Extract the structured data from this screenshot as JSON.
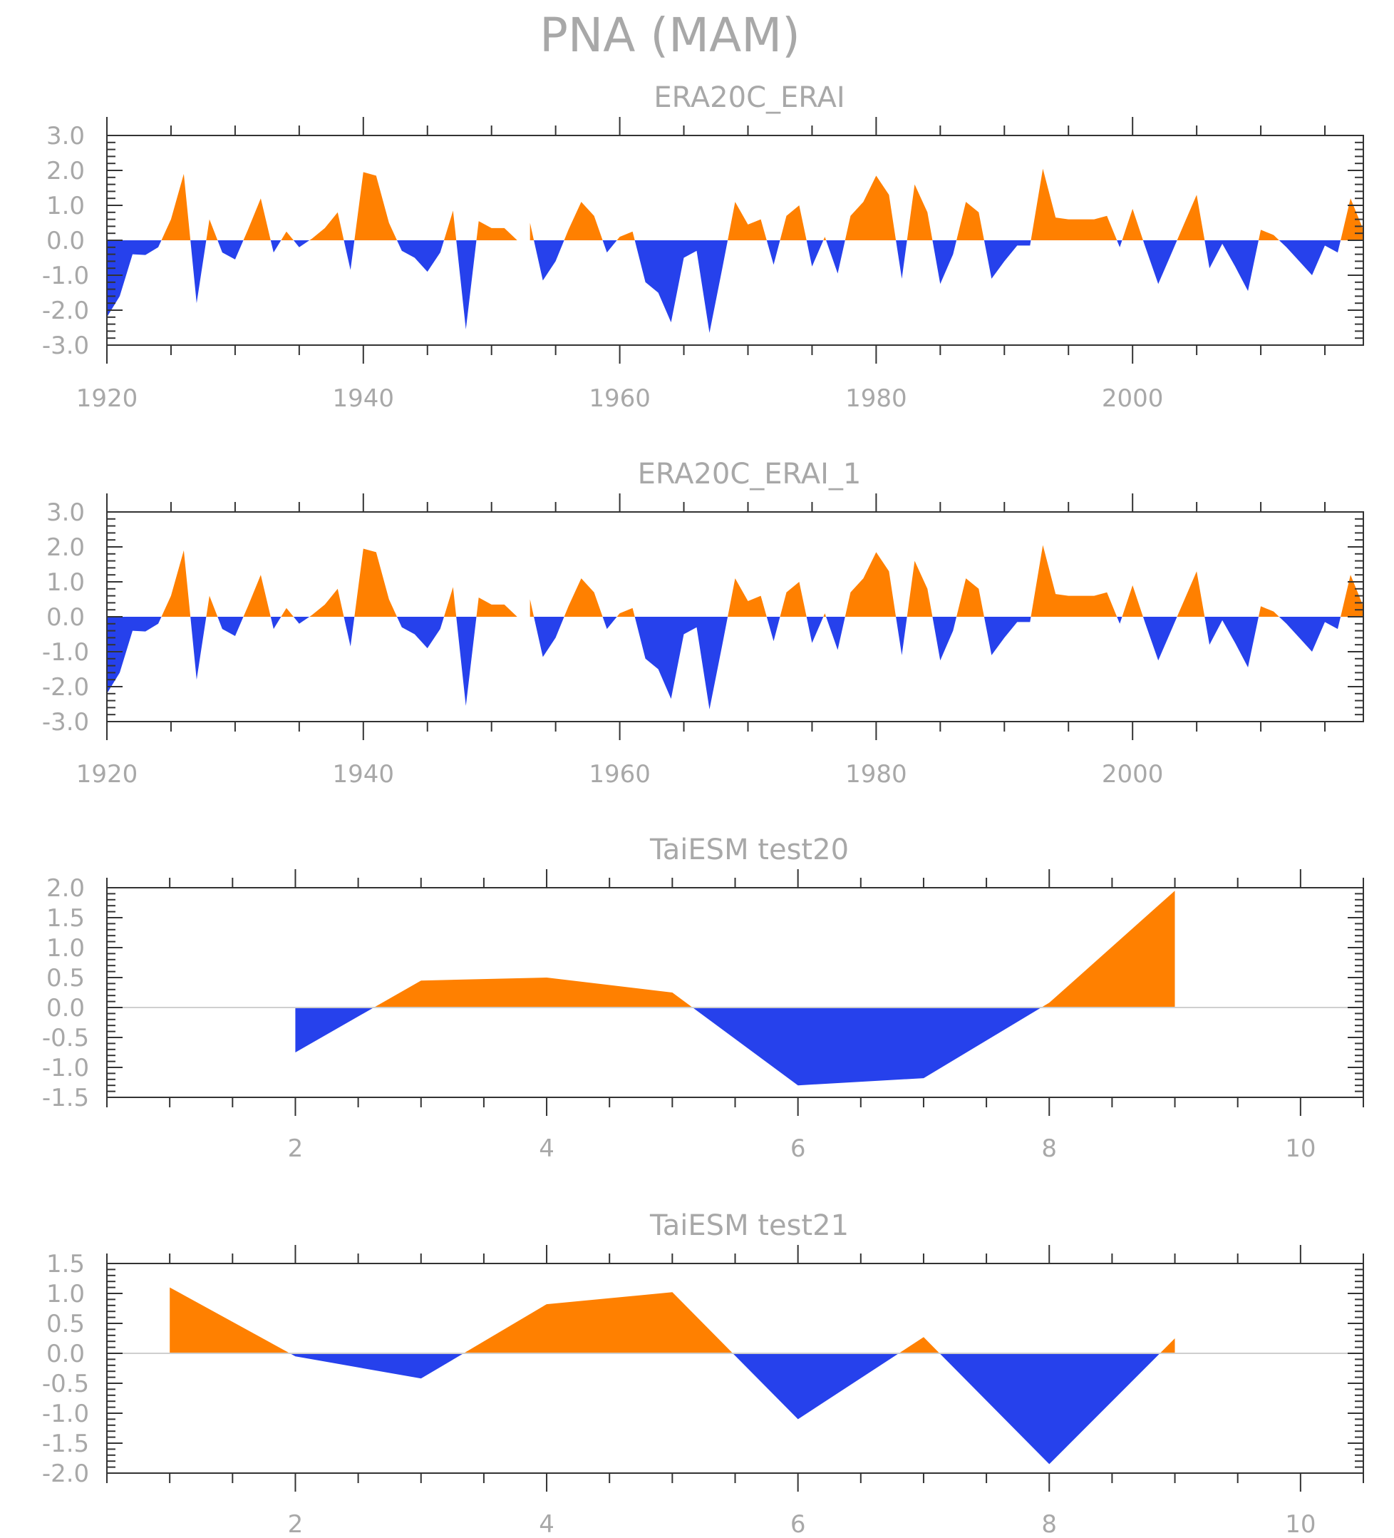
{
  "figure_title": "PNA (MAM)",
  "colors": {
    "positive": "#ff8000",
    "negative": "#2641ec",
    "text": "#a8a8a8",
    "axis": "#333333",
    "zero": "#cfcfcf"
  },
  "chart_data": [
    {
      "type": "area",
      "title": "ERA20C_ERAI",
      "xlabel": "",
      "ylabel": "",
      "xlim": [
        1920,
        2018
      ],
      "ylim": [
        -3.0,
        3.0
      ],
      "yticks": [
        "3.0",
        "2.0",
        "1.0",
        "0.0",
        "-1.0",
        "-2.0",
        "-3.0"
      ],
      "ytick_values": [
        3.0,
        2.0,
        1.0,
        0.0,
        -1.0,
        -2.0,
        -3.0
      ],
      "xticks": [
        "1920",
        "1940",
        "1960",
        "1980",
        "2000"
      ],
      "xtick_values": [
        1920,
        1940,
        1960,
        1980,
        2000
      ],
      "x_start": 1920,
      "values": [
        -2.2,
        -1.6,
        -0.4,
        -0.42,
        -0.2,
        0.6,
        1.9,
        -1.8,
        0.6,
        -0.35,
        -0.55,
        0.3,
        1.2,
        -0.35,
        0.25,
        -0.2,
        0.05,
        0.35,
        0.8,
        -0.85,
        1.95,
        1.85,
        0.5,
        -0.3,
        -0.5,
        -0.9,
        -0.35,
        0.85,
        -2.55,
        0.55,
        0.35,
        0.35,
        0.0,
        0.5,
        -1.15,
        -0.6,
        0.3,
        1.1,
        0.7,
        -0.35,
        0.1,
        0.25,
        -1.2,
        -1.5,
        -2.35,
        -0.5,
        -0.3,
        -2.65,
        -0.8,
        1.1,
        0.45,
        0.6,
        -0.7,
        0.7,
        1.0,
        -0.75,
        0.1,
        -0.95,
        0.7,
        1.1,
        1.85,
        1.3,
        -1.1,
        1.6,
        0.8,
        -1.25,
        -0.4,
        1.1,
        0.8,
        -1.1,
        -0.6,
        -0.15,
        -0.15,
        2.05,
        0.65,
        0.6,
        0.6,
        0.6,
        0.7,
        -0.2,
        0.9,
        -0.2,
        -1.25,
        -0.4,
        0.45,
        1.3,
        -0.8,
        -0.1,
        -0.75,
        -1.45,
        0.3,
        0.15,
        -0.2,
        -0.6,
        -1.0,
        -0.15,
        -0.35,
        1.2,
        0.3
      ]
    },
    {
      "type": "area",
      "title": "ERA20C_ERAI_1",
      "xlabel": "",
      "ylabel": "",
      "xlim": [
        1920,
        2018
      ],
      "ylim": [
        -3.0,
        3.0
      ],
      "yticks": [
        "3.0",
        "2.0",
        "1.0",
        "0.0",
        "-1.0",
        "-2.0",
        "-3.0"
      ],
      "ytick_values": [
        3.0,
        2.0,
        1.0,
        0.0,
        -1.0,
        -2.0,
        -3.0
      ],
      "xticks": [
        "1920",
        "1940",
        "1960",
        "1980",
        "2000"
      ],
      "xtick_values": [
        1920,
        1940,
        1960,
        1980,
        2000
      ],
      "x_start": 1920,
      "values": [
        -2.2,
        -1.6,
        -0.4,
        -0.42,
        -0.2,
        0.6,
        1.9,
        -1.8,
        0.6,
        -0.35,
        -0.55,
        0.3,
        1.2,
        -0.35,
        0.25,
        -0.2,
        0.05,
        0.35,
        0.8,
        -0.85,
        1.95,
        1.85,
        0.5,
        -0.3,
        -0.5,
        -0.9,
        -0.35,
        0.85,
        -2.55,
        0.55,
        0.35,
        0.35,
        0.0,
        0.5,
        -1.15,
        -0.6,
        0.3,
        1.1,
        0.7,
        -0.35,
        0.1,
        0.25,
        -1.2,
        -1.5,
        -2.35,
        -0.5,
        -0.3,
        -2.65,
        -0.8,
        1.1,
        0.45,
        0.6,
        -0.7,
        0.7,
        1.0,
        -0.75,
        0.1,
        -0.95,
        0.7,
        1.1,
        1.85,
        1.3,
        -1.1,
        1.6,
        0.8,
        -1.25,
        -0.4,
        1.1,
        0.8,
        -1.1,
        -0.6,
        -0.15,
        -0.15,
        2.05,
        0.65,
        0.6,
        0.6,
        0.6,
        0.7,
        -0.2,
        0.9,
        -0.2,
        -1.25,
        -0.4,
        0.45,
        1.3,
        -0.8,
        -0.1,
        -0.75,
        -1.45,
        0.3,
        0.15,
        -0.2,
        -0.6,
        -1.0,
        -0.15,
        -0.35,
        1.2,
        0.3
      ]
    },
    {
      "type": "area",
      "title": "TaiESM test20",
      "xlabel": "",
      "ylabel": "",
      "xlim": [
        0.5,
        10.5
      ],
      "ylim": [
        -1.5,
        2.0
      ],
      "yticks": [
        "2.0",
        "1.5",
        "1.0",
        "0.5",
        "0.0",
        "-0.5",
        "-1.0",
        "-1.5"
      ],
      "ytick_values": [
        2.0,
        1.5,
        1.0,
        0.5,
        0.0,
        -0.5,
        -1.0,
        -1.5
      ],
      "xticks": [
        "2",
        "4",
        "6",
        "8",
        "10"
      ],
      "xtick_values": [
        2,
        4,
        6,
        8,
        10
      ],
      "x_start": 1,
      "values": [
        0.0,
        -0.75,
        0.45,
        0.5,
        0.25,
        -1.3,
        -1.18,
        0.08,
        1.95
      ],
      "zero_line": true
    },
    {
      "type": "area",
      "title": "TaiESM test21",
      "xlabel": "",
      "ylabel": "",
      "xlim": [
        0.5,
        10.5
      ],
      "ylim": [
        -2.0,
        1.5
      ],
      "yticks": [
        "1.5",
        "1.0",
        "0.5",
        "0.0",
        "-0.5",
        "-1.0",
        "-1.5",
        "-2.0"
      ],
      "ytick_values": [
        1.5,
        1.0,
        0.5,
        0.0,
        -0.5,
        -1.0,
        -1.5,
        -2.0
      ],
      "xticks": [
        "2",
        "4",
        "6",
        "8",
        "10"
      ],
      "xtick_values": [
        2,
        4,
        6,
        8,
        10
      ],
      "x_start": 1,
      "values": [
        1.1,
        -0.05,
        -0.42,
        0.82,
        1.02,
        -1.1,
        0.27,
        -1.85,
        0.25
      ],
      "zero_line": true
    }
  ]
}
